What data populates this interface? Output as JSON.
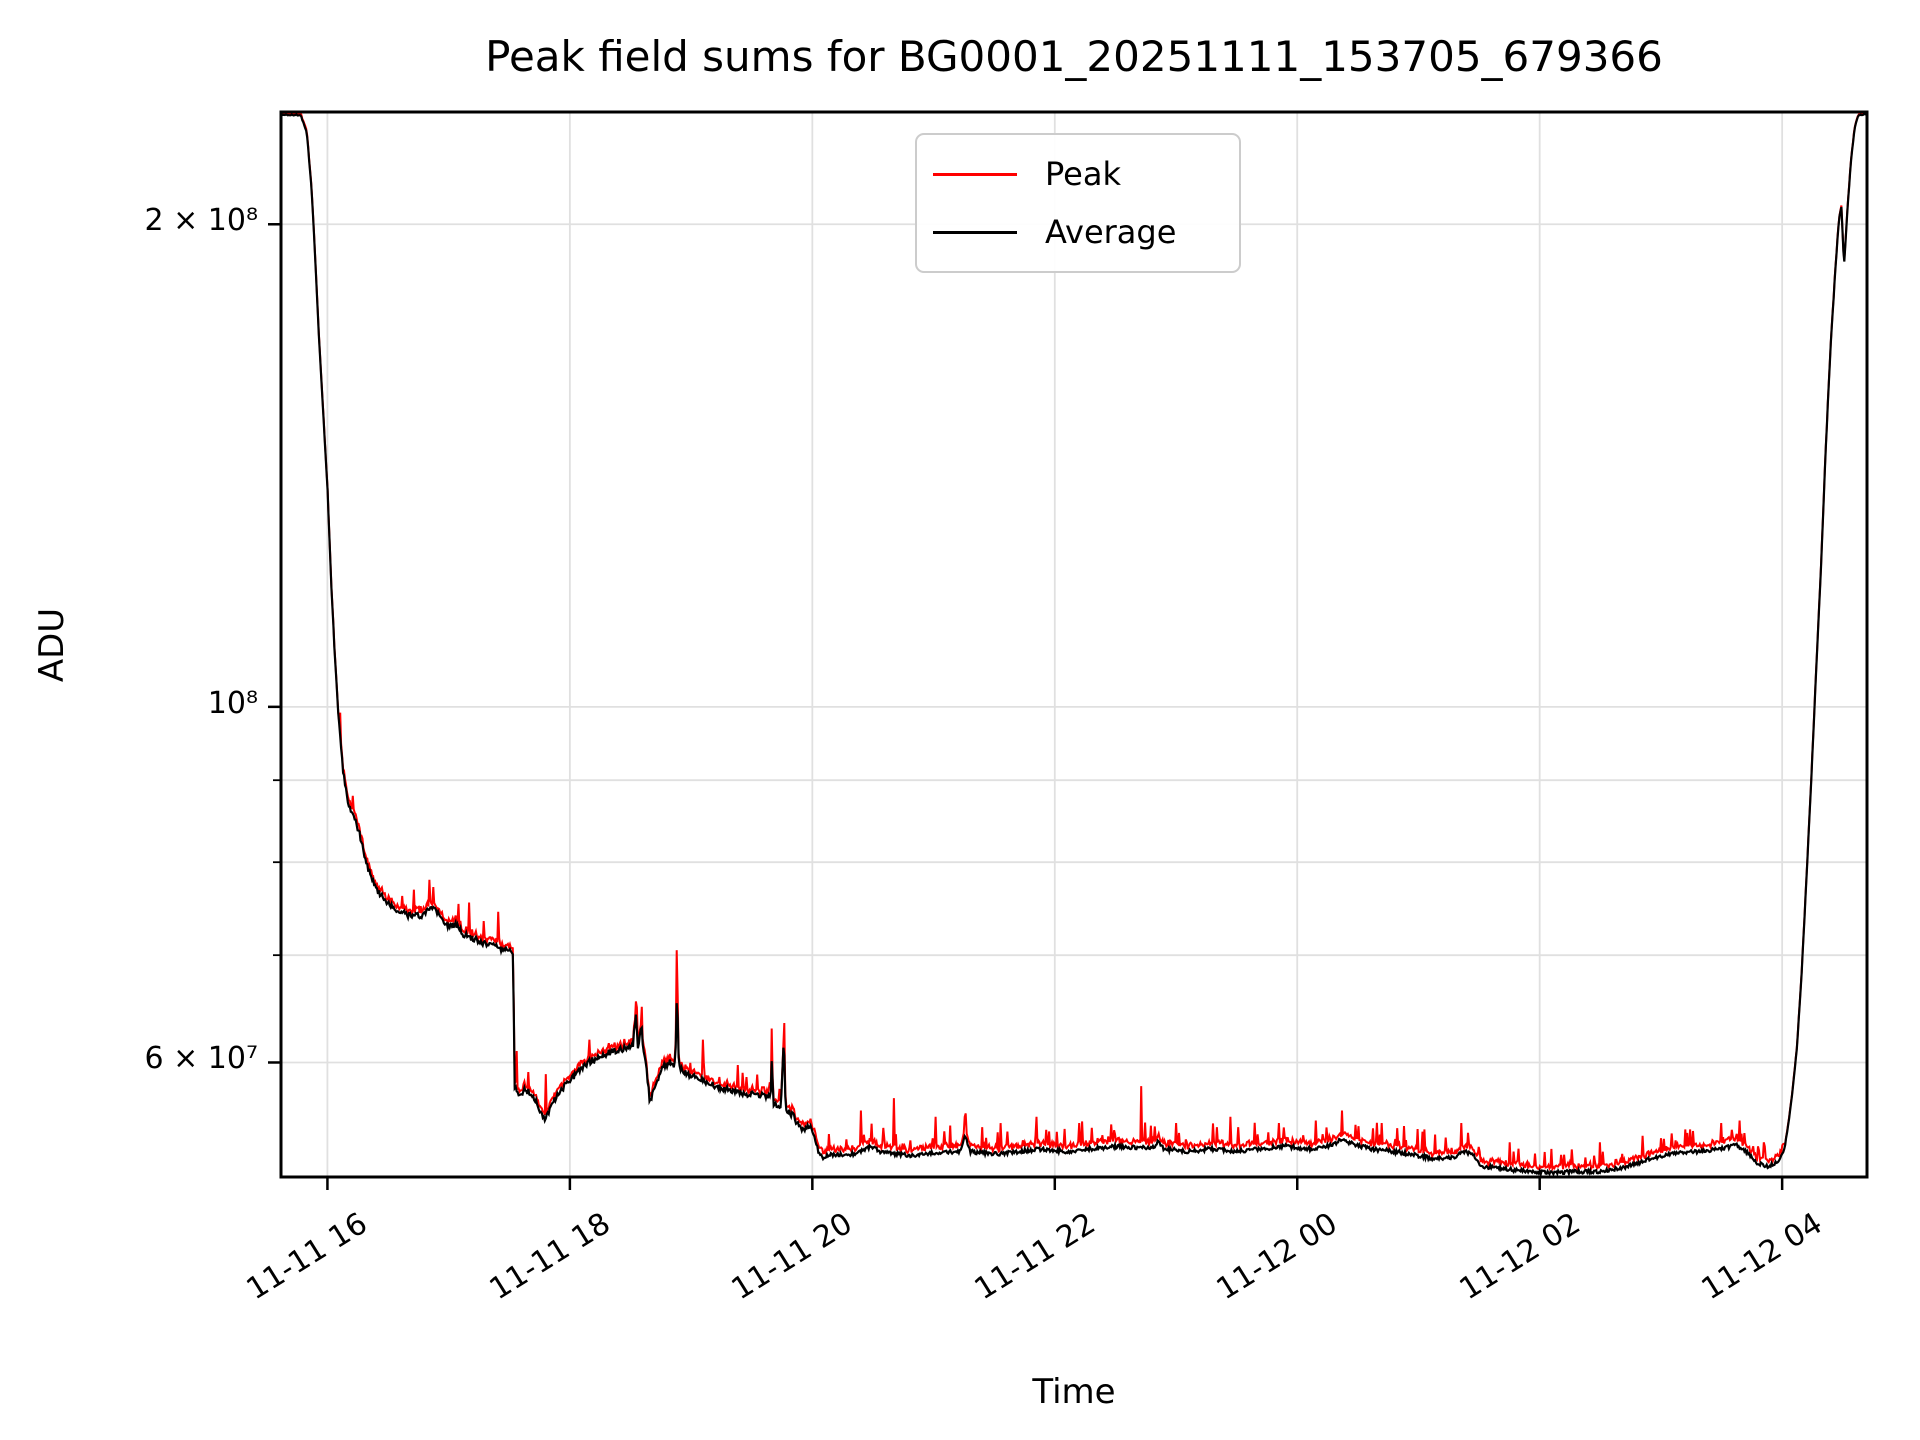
{
  "chart_data": {
    "type": "line",
    "yscale": "log",
    "title": "Peak field sums for BG0001_20251111_153705_679366",
    "xlabel": "Time",
    "ylabel": "ADU",
    "grid": true,
    "colors": {
      "peak": "#ff0000",
      "average": "#000000",
      "grid": "#e0e0e0",
      "frame": "#000000",
      "legend_edge": "#cccccc",
      "background": "#ffffff"
    },
    "legend": {
      "position": "upper center",
      "entries": [
        {
          "label": "Peak",
          "color": "#ff0000"
        },
        {
          "label": "Average",
          "color": "#000000"
        }
      ]
    },
    "axes": {
      "x_unit": "hours since 2025-11-11 00:00",
      "xlim_hours": [
        15.617,
        28.7
      ],
      "ylim": [
        50900000,
        235000000
      ],
      "x_ticks": [
        {
          "label": "11-11 16",
          "hour": 16
        },
        {
          "label": "11-11 18",
          "hour": 18
        },
        {
          "label": "11-11 20",
          "hour": 20
        },
        {
          "label": "11-11 22",
          "hour": 22
        },
        {
          "label": "11-12 00",
          "hour": 24
        },
        {
          "label": "11-12 02",
          "hour": 26
        },
        {
          "label": "11-12 04",
          "hour": 28
        }
      ],
      "y_ticks": [
        {
          "label": "2 × 10⁸",
          "value": 200000000.0
        },
        {
          "label": "10⁸",
          "value": 100000000.0
        },
        {
          "label": "6 × 10⁷",
          "value": 60000000.0
        }
      ],
      "y_minor_gridlines": [
        90000000.0,
        80000000.0,
        70000000.0
      ]
    },
    "series": [
      {
        "name": "Peak",
        "color": "#ff0000"
      },
      {
        "name": "Average",
        "color": "#000000"
      }
    ],
    "average_keypoints": [
      [
        15.617,
        234000000.0
      ],
      [
        15.78,
        234000000.0
      ],
      [
        15.83,
        228000000.0
      ],
      [
        15.87,
        210000000.0
      ],
      [
        15.9,
        190000000.0
      ],
      [
        15.93,
        170000000.0
      ],
      [
        15.96,
        155000000.0
      ],
      [
        16.0,
        137000000.0
      ],
      [
        16.03,
        120000000.0
      ],
      [
        16.06,
        108000000.0
      ],
      [
        16.09,
        99000000.0
      ],
      [
        16.13,
        91000000.0
      ],
      [
        16.17,
        87000000.0
      ],
      [
        16.23,
        85000000.0
      ],
      [
        16.27,
        83000000.0
      ],
      [
        16.33,
        79500000.0
      ],
      [
        16.4,
        77000000.0
      ],
      [
        16.5,
        75500000.0
      ],
      [
        16.6,
        74500000.0
      ],
      [
        16.7,
        74000000.0
      ],
      [
        16.8,
        74200000.0
      ],
      [
        16.86,
        75000000.0
      ],
      [
        16.9,
        74500000.0
      ],
      [
        16.95,
        73500000.0
      ],
      [
        17.0,
        72800000.0
      ],
      [
        17.06,
        73200000.0
      ],
      [
        17.12,
        72200000.0
      ],
      [
        17.2,
        71700000.0
      ],
      [
        17.3,
        71200000.0
      ],
      [
        17.4,
        70800000.0
      ],
      [
        17.5,
        70400000.0
      ],
      [
        17.53,
        70000000.0
      ],
      [
        17.545,
        58000000.0
      ],
      [
        17.58,
        57000000.0
      ],
      [
        17.63,
        57700000.0
      ],
      [
        17.7,
        57200000.0
      ],
      [
        17.75,
        56000000.0
      ],
      [
        17.79,
        55200000.0
      ],
      [
        17.84,
        56300000.0
      ],
      [
        17.9,
        57300000.0
      ],
      [
        17.97,
        58200000.0
      ],
      [
        18.05,
        59000000.0
      ],
      [
        18.15,
        60000000.0
      ],
      [
        18.25,
        60500000.0
      ],
      [
        18.35,
        61000000.0
      ],
      [
        18.45,
        61200000.0
      ],
      [
        18.52,
        61500000.0
      ],
      [
        18.545,
        64500000.0
      ],
      [
        18.56,
        61200000.0
      ],
      [
        18.59,
        63500000.0
      ],
      [
        18.605,
        61000000.0
      ],
      [
        18.63,
        59500000.0
      ],
      [
        18.66,
        56700000.0
      ],
      [
        18.7,
        58000000.0
      ],
      [
        18.76,
        59500000.0
      ],
      [
        18.82,
        60000000.0
      ],
      [
        18.87,
        59800000.0
      ],
      [
        18.883,
        66500000.0
      ],
      [
        18.9,
        59500000.0
      ],
      [
        18.98,
        59000000.0
      ],
      [
        19.08,
        58500000.0
      ],
      [
        19.2,
        58000000.0
      ],
      [
        19.35,
        57600000.0
      ],
      [
        19.5,
        57300000.0
      ],
      [
        19.62,
        57200000.0
      ],
      [
        19.655,
        57200000.0
      ],
      [
        19.665,
        60000000.0
      ],
      [
        19.68,
        56600000.0
      ],
      [
        19.74,
        56200000.0
      ],
      [
        19.765,
        62000000.0
      ],
      [
        19.78,
        56200000.0
      ],
      [
        19.84,
        55600000.0
      ],
      [
        19.9,
        54600000.0
      ],
      [
        19.94,
        54400000.0
      ],
      [
        19.98,
        54800000.0
      ],
      [
        20.01,
        54200000.0
      ],
      [
        20.05,
        52800000.0
      ],
      [
        20.09,
        52200000.0
      ],
      [
        20.13,
        52500000.0
      ],
      [
        20.2,
        52600000.0
      ],
      [
        20.3,
        52500000.0
      ],
      [
        20.45,
        53000000.0
      ],
      [
        20.5,
        53200000.0
      ],
      [
        20.55,
        52800000.0
      ],
      [
        20.7,
        52600000.0
      ],
      [
        20.85,
        52500000.0
      ],
      [
        21.0,
        52700000.0
      ],
      [
        21.22,
        52800000.0
      ],
      [
        21.26,
        54000000.0
      ],
      [
        21.3,
        52800000.0
      ],
      [
        21.5,
        52600000.0
      ],
      [
        21.7,
        52800000.0
      ],
      [
        21.9,
        53000000.0
      ],
      [
        22.1,
        52800000.0
      ],
      [
        22.3,
        53000000.0
      ],
      [
        22.55,
        53200000.0
      ],
      [
        22.8,
        53000000.0
      ],
      [
        22.85,
        53500000.0
      ],
      [
        22.9,
        53000000.0
      ],
      [
        23.1,
        52800000.0
      ],
      [
        23.3,
        53000000.0
      ],
      [
        23.5,
        52800000.0
      ],
      [
        23.7,
        53000000.0
      ],
      [
        23.9,
        53200000.0
      ],
      [
        24.1,
        53000000.0
      ],
      [
        24.3,
        53300000.0
      ],
      [
        24.37,
        53800000.0
      ],
      [
        24.45,
        53400000.0
      ],
      [
        24.6,
        53000000.0
      ],
      [
        24.8,
        52800000.0
      ],
      [
        25.0,
        52500000.0
      ],
      [
        25.15,
        52200000.0
      ],
      [
        25.3,
        52400000.0
      ],
      [
        25.38,
        52800000.0
      ],
      [
        25.45,
        52600000.0
      ],
      [
        25.52,
        51700000.0
      ],
      [
        25.7,
        51500000.0
      ],
      [
        25.9,
        51300000.0
      ],
      [
        26.1,
        51200000.0
      ],
      [
        26.3,
        51300000.0
      ],
      [
        26.5,
        51300000.0
      ],
      [
        26.7,
        51600000.0
      ],
      [
        26.9,
        52200000.0
      ],
      [
        27.1,
        52700000.0
      ],
      [
        27.3,
        52800000.0
      ],
      [
        27.5,
        53000000.0
      ],
      [
        27.62,
        53300000.0
      ],
      [
        27.7,
        52800000.0
      ],
      [
        27.78,
        52000000.0
      ],
      [
        27.88,
        51700000.0
      ],
      [
        27.97,
        52000000.0
      ],
      [
        28.02,
        53000000.0
      ],
      [
        28.06,
        55500000.0
      ],
      [
        28.09,
        58000000.0
      ],
      [
        28.12,
        61000000.0
      ],
      [
        28.16,
        68000000.0
      ],
      [
        28.2,
        78000000.0
      ],
      [
        28.24,
        90000000.0
      ],
      [
        28.28,
        105000000.0
      ],
      [
        28.32,
        122000000.0
      ],
      [
        28.36,
        145000000.0
      ],
      [
        28.4,
        168000000.0
      ],
      [
        28.44,
        188000000.0
      ],
      [
        28.47,
        202000000.0
      ],
      [
        28.49,
        205000000.0
      ],
      [
        28.51,
        188000000.0
      ],
      [
        28.54,
        205000000.0
      ],
      [
        28.57,
        220000000.0
      ],
      [
        28.6,
        230000000.0
      ],
      [
        28.63,
        234000000.0
      ],
      [
        28.7,
        234500000.0
      ]
    ],
    "peak_spikes": [
      [
        16.84,
        78000000.0
      ],
      [
        16.87,
        77200000.0
      ],
      [
        17.17,
        75500000.0
      ],
      [
        17.41,
        74500000.0
      ],
      [
        17.56,
        61000000.0
      ],
      [
        17.8,
        59000000.0
      ],
      [
        18.16,
        62000000.0
      ],
      [
        18.545,
        65500000.0
      ],
      [
        18.59,
        65000000.0
      ],
      [
        18.883,
        70500000.0
      ],
      [
        19.1,
        62000000.0
      ],
      [
        19.665,
        63000000.0
      ],
      [
        19.765,
        63500000.0
      ],
      [
        20.4,
        56000000.0
      ],
      [
        20.67,
        57000000.0
      ],
      [
        21.02,
        55500000.0
      ],
      [
        21.26,
        55500000.0
      ],
      [
        21.55,
        55000000.0
      ],
      [
        21.85,
        55500000.0
      ],
      [
        22.2,
        55000000.0
      ],
      [
        22.71,
        58000000.0
      ],
      [
        23.0,
        55000000.0
      ],
      [
        23.45,
        55500000.0
      ],
      [
        23.85,
        55000000.0
      ],
      [
        24.15,
        55200000.0
      ],
      [
        24.37,
        56000000.0
      ],
      [
        24.7,
        55000000.0
      ],
      [
        25.05,
        54500000.0
      ],
      [
        25.35,
        55000000.0
      ],
      [
        25.75,
        53500000.0
      ],
      [
        26.1,
        53000000.0
      ],
      [
        26.5,
        53500000.0
      ],
      [
        26.85,
        54000000.0
      ],
      [
        27.2,
        54500000.0
      ],
      [
        27.5,
        55000000.0
      ],
      [
        27.65,
        55200000.0
      ],
      [
        27.85,
        53500000.0
      ]
    ],
    "noise_segments": [
      [
        15.617,
        15.9,
        0.0008
      ],
      [
        15.9,
        16.12,
        0.0015
      ],
      [
        16.12,
        17.52,
        0.0045
      ],
      [
        17.52,
        20.0,
        0.0045
      ],
      [
        20.0,
        25.45,
        0.003
      ],
      [
        25.45,
        27.95,
        0.0028
      ],
      [
        27.95,
        28.7,
        0.001
      ]
    ],
    "peak_offset_segments": [
      [
        15.617,
        16.1,
        0.0015,
        0.002
      ],
      [
        16.1,
        20.0,
        0.004,
        0.006
      ],
      [
        20.0,
        28.02,
        0.005,
        0.007
      ],
      [
        28.02,
        28.7,
        0.001,
        0.0015
      ]
    ],
    "peak_spike_prob_segments": [
      [
        16.1,
        20.0,
        0.05,
        0.03
      ],
      [
        20.0,
        25.45,
        0.1,
        0.035
      ],
      [
        25.45,
        27.95,
        0.1,
        0.028
      ],
      [
        27.95,
        28.7,
        0.0,
        0.0
      ]
    ],
    "sample_step_hours": 0.008,
    "seed": 1337
  }
}
